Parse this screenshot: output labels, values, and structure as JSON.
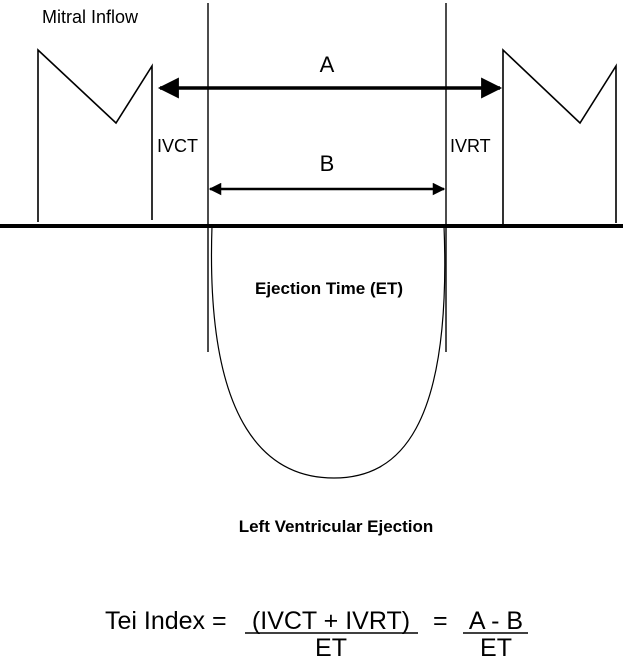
{
  "title_label": "Mitral Inflow",
  "interval_a_label": "A",
  "interval_b_label": "B",
  "ivct_label": "IVCT",
  "ivrt_label": "IVRT",
  "ejection_time_label": "Ejection Time (ET)",
  "lv_ejection_label": "Left Ventricular Ejection",
  "formula": {
    "lhs": "Tei Index =",
    "numerator_1": "(IVCT + IVRT)",
    "denominator_1": "ET",
    "equals": "=",
    "numerator_2": "A - B",
    "denominator_2": "ET"
  }
}
